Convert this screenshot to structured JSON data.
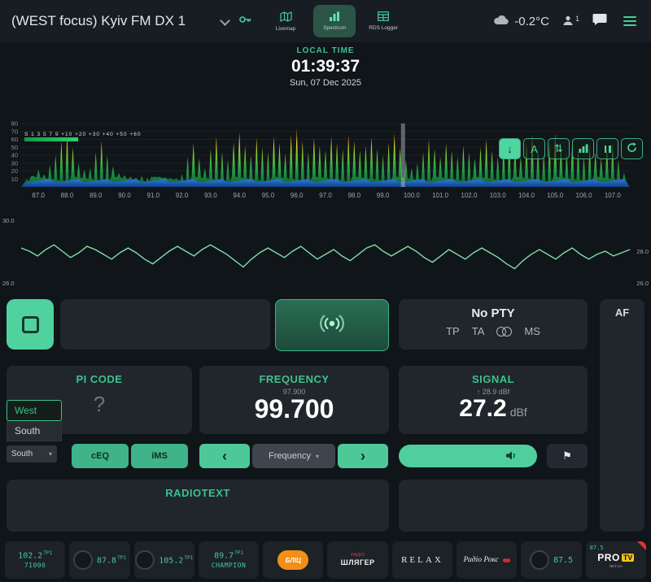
{
  "header": {
    "title": "(WEST focus) Kyiv FM DX 1",
    "nav": [
      {
        "label": "Livemap"
      },
      {
        "label": "Spectrum"
      },
      {
        "label": "RDS Logger"
      }
    ],
    "temperature": "-0.2°C",
    "user_count": "1"
  },
  "clock": {
    "label": "LOCAL TIME",
    "time": "01:39:37",
    "date": "Sun, 07 Dec 2025"
  },
  "smeter": {
    "legend": "S 1 3 5 7 9 +10 +20 +30 +40 +50 +60"
  },
  "icons": {
    "arrow_down": "↓",
    "auto": "A",
    "updown": "⇅",
    "chevron_left": "‹",
    "chevron_right": "›",
    "caret": "▾",
    "flag": "⚑"
  },
  "tuner": {
    "pty": "No PTY",
    "flags": [
      "TP",
      "TA",
      "MS"
    ],
    "pi_label": "PI CODE",
    "pi_value": "?",
    "freq_label": "FREQUENCY",
    "freq_prev": "97.900",
    "freq_value": "99.700",
    "signal_label": "SIGNAL",
    "signal_peak": "↑ 28.9 dBf",
    "signal_value": "27.2",
    "signal_unit": "dBf",
    "radiotext_label": "RADIOTEXT",
    "af_label": "AF",
    "ceq_label": "cEQ",
    "ims_label": "iMS",
    "freq_step_label": "Frequency",
    "antenna_options": [
      "West",
      "South"
    ],
    "antenna_selected": "South"
  },
  "chart_data": [
    {
      "type": "area",
      "name": "fm-band-spectrum",
      "x_unit": "MHz",
      "y_unit": "dBf",
      "x_start": 86.6,
      "x_step": 0.2,
      "ylim": [
        0,
        80
      ],
      "y_ticks": [
        10,
        20,
        30,
        40,
        50,
        60,
        70,
        80
      ],
      "x_ticks": [
        87,
        88,
        89,
        90,
        91,
        92,
        93,
        94,
        95,
        96,
        97,
        98,
        99,
        100,
        101,
        102,
        103,
        104,
        105,
        106,
        107
      ],
      "cursor_x": 99.7,
      "values": [
        10,
        14,
        22,
        16,
        28,
        40,
        58,
        66,
        50,
        30,
        22,
        24,
        44,
        58,
        40,
        26,
        18,
        15,
        13,
        12,
        14,
        12,
        12,
        13,
        12,
        11,
        11,
        16,
        38,
        55,
        36,
        24,
        48,
        64,
        44,
        34,
        56,
        70,
        52,
        40,
        62,
        50,
        44,
        64,
        55,
        42,
        66,
        74,
        58,
        44,
        62,
        52,
        46,
        64,
        55,
        48,
        66,
        58,
        46,
        52,
        63,
        48,
        40,
        56,
        68,
        50,
        34,
        24,
        30,
        44,
        60,
        48,
        38,
        55,
        46,
        38,
        52,
        44,
        36,
        50,
        60,
        46,
        38,
        52,
        63,
        48,
        38,
        55,
        66,
        48,
        42,
        58,
        68,
        52,
        42,
        60,
        48,
        38,
        52,
        44,
        36,
        50,
        55,
        34,
        18
      ]
    },
    {
      "type": "line",
      "name": "signal-history",
      "ylim": [
        26,
        30
      ],
      "left_labels": [
        "30.0",
        "26.0"
      ],
      "right_labels": [
        "28.0",
        "26.0"
      ],
      "values": [
        28.2,
        28.0,
        27.7,
        28.1,
        28.4,
        28.0,
        27.6,
        27.9,
        28.3,
        28.1,
        27.8,
        27.5,
        27.9,
        28.2,
        27.9,
        27.5,
        27.2,
        27.6,
        28.0,
        28.3,
        28.0,
        27.7,
        28.1,
        28.4,
        28.1,
        27.8,
        27.4,
        27.0,
        27.5,
        27.9,
        28.2,
        27.9,
        27.6,
        28.0,
        28.3,
        27.9,
        27.5,
        27.8,
        28.1,
        27.7,
        27.4,
        27.8,
        28.2,
        28.4,
        28.0,
        27.7,
        28.0,
        28.3,
        28.0,
        27.6,
        27.3,
        27.7,
        28.1,
        27.8,
        27.5,
        27.9,
        28.2,
        27.9,
        27.6,
        27.2,
        26.9,
        27.4,
        27.8,
        28.1,
        27.8,
        27.5,
        27.9,
        28.2,
        27.8,
        27.5,
        27.8,
        28.0,
        27.7,
        27.9,
        28.1
      ]
    }
  ],
  "presets": [
    {
      "freq": "102.2",
      "badge": "TP1",
      "line2": "71006"
    },
    {
      "freq": "87.8",
      "badge": "TP1"
    },
    {
      "freq": "105.2",
      "badge": "TP1"
    },
    {
      "freq": "89.7",
      "badge": "TP1",
      "line2": "CHAMPION"
    },
    {
      "logo": "blitz",
      "text": "БЛІЦ"
    },
    {
      "logo": "shlyager",
      "line1": "РАДІО",
      "line2": "ШЛЯГЕР"
    },
    {
      "logo": "relax",
      "text": "RELAX"
    },
    {
      "logo": "roks",
      "text": "Радіо Рокс"
    },
    {
      "freq": "87.5",
      "badge": ""
    },
    {
      "logo": "protv",
      "freq": "87.5",
      "line1": "PRO",
      "line2": "TV",
      "line3": "NET.UA"
    }
  ]
}
